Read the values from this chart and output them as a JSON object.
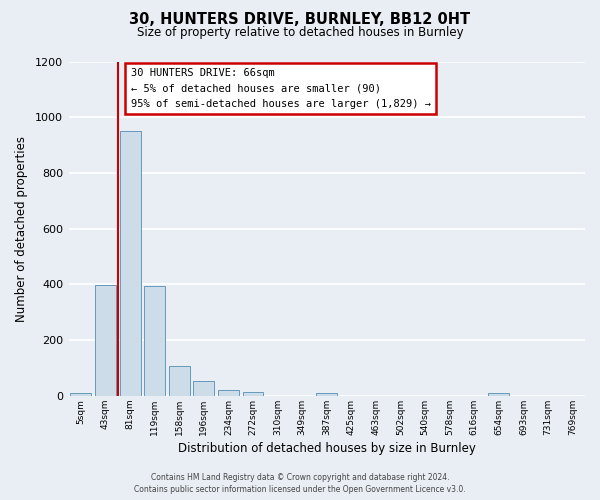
{
  "title_line1": "30, HUNTERS DRIVE, BURNLEY, BB12 0HT",
  "title_line2": "Size of property relative to detached houses in Burnley",
  "xlabel": "Distribution of detached houses by size in Burnley",
  "ylabel": "Number of detached properties",
  "categories": [
    "5sqm",
    "43sqm",
    "81sqm",
    "119sqm",
    "158sqm",
    "196sqm",
    "234sqm",
    "272sqm",
    "310sqm",
    "349sqm",
    "387sqm",
    "425sqm",
    "463sqm",
    "502sqm",
    "540sqm",
    "578sqm",
    "616sqm",
    "654sqm",
    "693sqm",
    "731sqm",
    "769sqm"
  ],
  "bar_values": [
    10,
    397,
    950,
    393,
    107,
    52,
    22,
    15,
    0,
    0,
    10,
    0,
    0,
    0,
    0,
    0,
    0,
    10,
    0,
    0,
    0
  ],
  "bar_color": "#ccdce8",
  "bar_edge_color": "#6699bb",
  "ylim": [
    0,
    1200
  ],
  "yticks": [
    0,
    200,
    400,
    600,
    800,
    1000,
    1200
  ],
  "vline_index": 1.5,
  "vline_color": "#cc0000",
  "annotation_box_color": "#cc0000",
  "annotation_text_line1": "30 HUNTERS DRIVE: 66sqm",
  "annotation_text_line2": "← 5% of detached houses are smaller (90)",
  "annotation_text_line3": "95% of semi-detached houses are larger (1,829) →",
  "footer_line1": "Contains HM Land Registry data © Crown copyright and database right 2024.",
  "footer_line2": "Contains public sector information licensed under the Open Government Licence v3.0.",
  "bg_color": "#e8eef4",
  "grid_color": "#ffffff"
}
